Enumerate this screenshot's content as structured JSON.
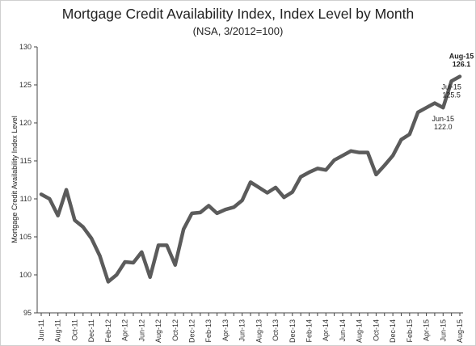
{
  "chart_data": {
    "type": "line",
    "title": "Mortgage Credit Availability Index, Index Level by Month",
    "subtitle": "(NSA, 3/2012=100)",
    "xlabel": "",
    "ylabel": "Mortgage Credit Availability Index Level",
    "ylim": [
      95,
      130
    ],
    "yticks": [
      95,
      100,
      105,
      110,
      115,
      120,
      125,
      130
    ],
    "grid": false,
    "x": [
      "Jun-11",
      "Jul-11",
      "Aug-11",
      "Sep-11",
      "Oct-11",
      "Nov-11",
      "Dec-11",
      "Jan-12",
      "Feb-12",
      "Mar-12",
      "Apr-12",
      "May-12",
      "Jun-12",
      "Jul-12",
      "Aug-12",
      "Sep-12",
      "Oct-12",
      "Nov-12",
      "Dec-12",
      "Jan-13",
      "Feb-13",
      "Mar-13",
      "Apr-13",
      "May-13",
      "Jun-13",
      "Jul-13",
      "Aug-13",
      "Sep-13",
      "Oct-13",
      "Nov-13",
      "Dec-13",
      "Jan-14",
      "Feb-14",
      "Mar-14",
      "Apr-14",
      "May-14",
      "Jun-14",
      "Jul-14",
      "Aug-14",
      "Sep-14",
      "Oct-14",
      "Nov-14",
      "Dec-14",
      "Jan-15",
      "Feb-15",
      "Mar-15",
      "Apr-15",
      "May-15",
      "Jun-15",
      "Jul-15",
      "Aug-15"
    ],
    "xtick_labels": [
      "Jun-11",
      "Aug-11",
      "Oct-11",
      "Dec-11",
      "Feb-12",
      "Apr-12",
      "Jun-12",
      "Aug-12",
      "Oct-12",
      "Dec-12",
      "Feb-13",
      "Apr-13",
      "Jun-13",
      "Aug-13",
      "Oct-13",
      "Dec-13",
      "Feb-14",
      "Apr-14",
      "Jun-14",
      "Aug-14",
      "Oct-14",
      "Dec-14",
      "Feb-15",
      "Apr-15",
      "Jun-15",
      "Aug-15"
    ],
    "series": [
      {
        "name": "",
        "color": "#5b5b5b",
        "values": [
          110.6,
          110.0,
          107.8,
          111.2,
          107.2,
          106.3,
          104.8,
          102.5,
          99.1,
          100.0,
          101.7,
          101.6,
          103.0,
          99.7,
          103.9,
          103.9,
          101.3,
          106.0,
          108.1,
          108.2,
          109.1,
          108.1,
          108.6,
          108.9,
          109.8,
          112.2,
          111.5,
          110.8,
          111.5,
          110.2,
          110.9,
          112.9,
          113.5,
          114.0,
          113.8,
          115.1,
          115.7,
          116.3,
          116.1,
          116.1,
          113.2,
          114.4,
          115.7,
          117.8,
          118.5,
          121.4,
          122.0,
          122.6,
          122.0,
          125.5,
          126.1
        ]
      }
    ],
    "annotations": [
      {
        "label": "Aug-15",
        "value": "126.1",
        "bold": true
      },
      {
        "label": "Jul-15",
        "value": "125.5",
        "bold": false
      },
      {
        "label": "Jun-15",
        "value": "122.0",
        "bold": false
      }
    ]
  }
}
